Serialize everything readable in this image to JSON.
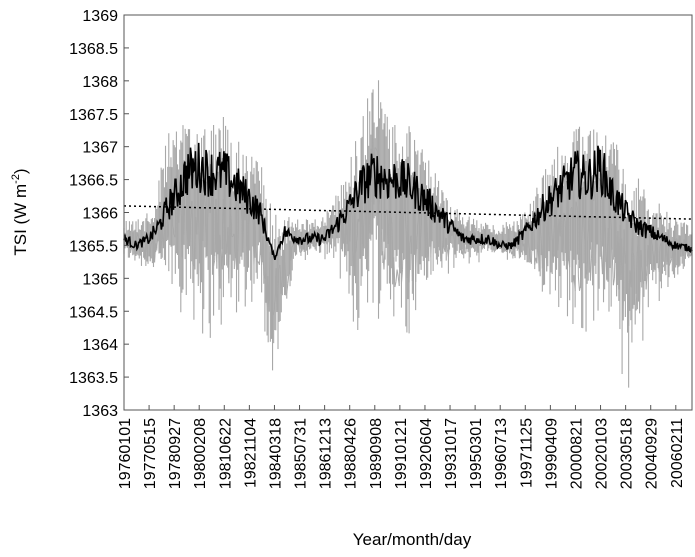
{
  "chart_data": {
    "type": "line",
    "title": "",
    "xlabel": "Year/month/day",
    "ylabel": "TSI (W m",
    "ylabel_superscript": "-2",
    "ylabel_close": ")",
    "ylim": [
      1363,
      1369
    ],
    "y_ticks": [
      "1363",
      "1363.5",
      "1364",
      "1364.5",
      "1365",
      "1365.5",
      "1366",
      "1366.5",
      "1367",
      "1367.5",
      "1368",
      "1368.5",
      "1369"
    ],
    "x_ticks": [
      "19760101",
      "19770515",
      "19780927",
      "19800208",
      "19810622",
      "19821104",
      "19840318",
      "19850731",
      "19861213",
      "19880426",
      "19890908",
      "19910121",
      "19920604",
      "19931017",
      "19950301",
      "19960713",
      "19971125",
      "19990409",
      "20000821",
      "20020103",
      "20030518",
      "20040929",
      "20060211"
    ],
    "xlim": [
      "1976-01-01",
      "2006-12-31"
    ],
    "grid": false,
    "legend": "none",
    "series": [
      {
        "style": "daily, light gray",
        "color": "#a8a8a8",
        "approx_range_envelope": [
          {
            "date": "1976-01-01",
            "low": 1365.2,
            "high": 1365.9
          },
          {
            "date": "1977-06-01",
            "low": 1365.0,
            "high": 1366.0
          },
          {
            "date": "1978-06-01",
            "low": 1364.5,
            "high": 1367.2
          },
          {
            "date": "1979-06-01",
            "low": 1364.3,
            "high": 1367.5
          },
          {
            "date": "1980-06-01",
            "low": 1363.8,
            "high": 1367.6
          },
          {
            "date": "1981-06-01",
            "low": 1363.9,
            "high": 1367.5
          },
          {
            "date": "1982-06-01",
            "low": 1364.3,
            "high": 1367.0
          },
          {
            "date": "1983-06-01",
            "low": 1364.6,
            "high": 1366.8
          },
          {
            "date": "1984-03-01",
            "low": 1363.1,
            "high": 1366.0
          },
          {
            "date": "1985-06-01",
            "low": 1365.2,
            "high": 1365.9
          },
          {
            "date": "1986-09-01",
            "low": 1365.3,
            "high": 1365.9
          },
          {
            "date": "1987-09-01",
            "low": 1365.1,
            "high": 1366.3
          },
          {
            "date": "1988-09-01",
            "low": 1363.8,
            "high": 1367.2
          },
          {
            "date": "1989-09-01",
            "low": 1364.4,
            "high": 1368.2
          },
          {
            "date": "1990-09-01",
            "low": 1364.0,
            "high": 1367.4
          },
          {
            "date": "1991-09-01",
            "low": 1364.0,
            "high": 1367.3
          },
          {
            "date": "1992-09-01",
            "low": 1364.6,
            "high": 1366.8
          },
          {
            "date": "1993-09-01",
            "low": 1365.0,
            "high": 1366.2
          },
          {
            "date": "1995-03-01",
            "low": 1365.2,
            "high": 1365.9
          },
          {
            "date": "1996-07-01",
            "low": 1365.3,
            "high": 1365.8
          },
          {
            "date": "1997-11-01",
            "low": 1365.0,
            "high": 1366.0
          },
          {
            "date": "1998-09-01",
            "low": 1364.6,
            "high": 1366.5
          },
          {
            "date": "1999-09-01",
            "low": 1364.5,
            "high": 1367.0
          },
          {
            "date": "2000-09-01",
            "low": 1363.9,
            "high": 1367.3
          },
          {
            "date": "2001-09-01",
            "low": 1364.1,
            "high": 1367.4
          },
          {
            "date": "2002-09-01",
            "low": 1364.0,
            "high": 1367.2
          },
          {
            "date": "2003-09-01",
            "low": 1363.0,
            "high": 1366.7
          },
          {
            "date": "2004-09-01",
            "low": 1364.4,
            "high": 1366.3
          },
          {
            "date": "2005-09-01",
            "low": 1364.7,
            "high": 1366.0
          },
          {
            "date": "2006-12-31",
            "low": 1365.2,
            "high": 1365.8
          }
        ]
      },
      {
        "style": "smoothed, black",
        "color": "#000000",
        "points": [
          {
            "date": "1976-01-01",
            "y": 1365.6
          },
          {
            "date": "1976-09-01",
            "y": 1365.5
          },
          {
            "date": "1977-05-15",
            "y": 1365.6
          },
          {
            "date": "1977-12-01",
            "y": 1365.8
          },
          {
            "date": "1978-06-01",
            "y": 1366.1
          },
          {
            "date": "1978-12-01",
            "y": 1366.3
          },
          {
            "date": "1979-06-01",
            "y": 1366.6
          },
          {
            "date": "1980-02-08",
            "y": 1366.7
          },
          {
            "date": "1980-09-01",
            "y": 1366.6
          },
          {
            "date": "1981-06-22",
            "y": 1366.6
          },
          {
            "date": "1982-03-01",
            "y": 1366.4
          },
          {
            "date": "1982-11-04",
            "y": 1366.2
          },
          {
            "date": "1983-06-01",
            "y": 1366.0
          },
          {
            "date": "1984-03-18",
            "y": 1365.3
          },
          {
            "date": "1984-10-01",
            "y": 1365.7
          },
          {
            "date": "1985-07-31",
            "y": 1365.6
          },
          {
            "date": "1986-06-01",
            "y": 1365.6
          },
          {
            "date": "1986-12-13",
            "y": 1365.6
          },
          {
            "date": "1987-08-01",
            "y": 1365.8
          },
          {
            "date": "1988-04-26",
            "y": 1366.1
          },
          {
            "date": "1988-12-01",
            "y": 1366.4
          },
          {
            "date": "1989-09-08",
            "y": 1366.6
          },
          {
            "date": "1990-06-01",
            "y": 1366.5
          },
          {
            "date": "1991-01-21",
            "y": 1366.5
          },
          {
            "date": "1991-09-01",
            "y": 1366.4
          },
          {
            "date": "1992-06-04",
            "y": 1366.2
          },
          {
            "date": "1993-03-01",
            "y": 1366.0
          },
          {
            "date": "1993-10-17",
            "y": 1365.8
          },
          {
            "date": "1994-07-01",
            "y": 1365.6
          },
          {
            "date": "1995-03-01",
            "y": 1365.6
          },
          {
            "date": "1995-12-01",
            "y": 1365.6
          },
          {
            "date": "1996-07-13",
            "y": 1365.5
          },
          {
            "date": "1997-03-01",
            "y": 1365.5
          },
          {
            "date": "1997-11-25",
            "y": 1365.7
          },
          {
            "date": "1998-09-01",
            "y": 1366.0
          },
          {
            "date": "1999-04-09",
            "y": 1366.2
          },
          {
            "date": "2000-01-01",
            "y": 1366.4
          },
          {
            "date": "2000-08-21",
            "y": 1366.6
          },
          {
            "date": "2001-05-01",
            "y": 1366.5
          },
          {
            "date": "2002-01-03",
            "y": 1366.7
          },
          {
            "date": "2002-08-01",
            "y": 1366.3
          },
          {
            "date": "2003-05-18",
            "y": 1366.0
          },
          {
            "date": "2004-01-01",
            "y": 1365.8
          },
          {
            "date": "2004-09-29",
            "y": 1365.7
          },
          {
            "date": "2005-06-01",
            "y": 1365.6
          },
          {
            "date": "2006-02-11",
            "y": 1365.5
          },
          {
            "date": "2006-12-31",
            "y": 1365.45
          }
        ]
      },
      {
        "style": "dotted trend line",
        "color": "#000000",
        "points": [
          {
            "date": "1976-01-01",
            "y": 1366.1
          },
          {
            "date": "2006-12-31",
            "y": 1365.9
          }
        ]
      }
    ]
  }
}
